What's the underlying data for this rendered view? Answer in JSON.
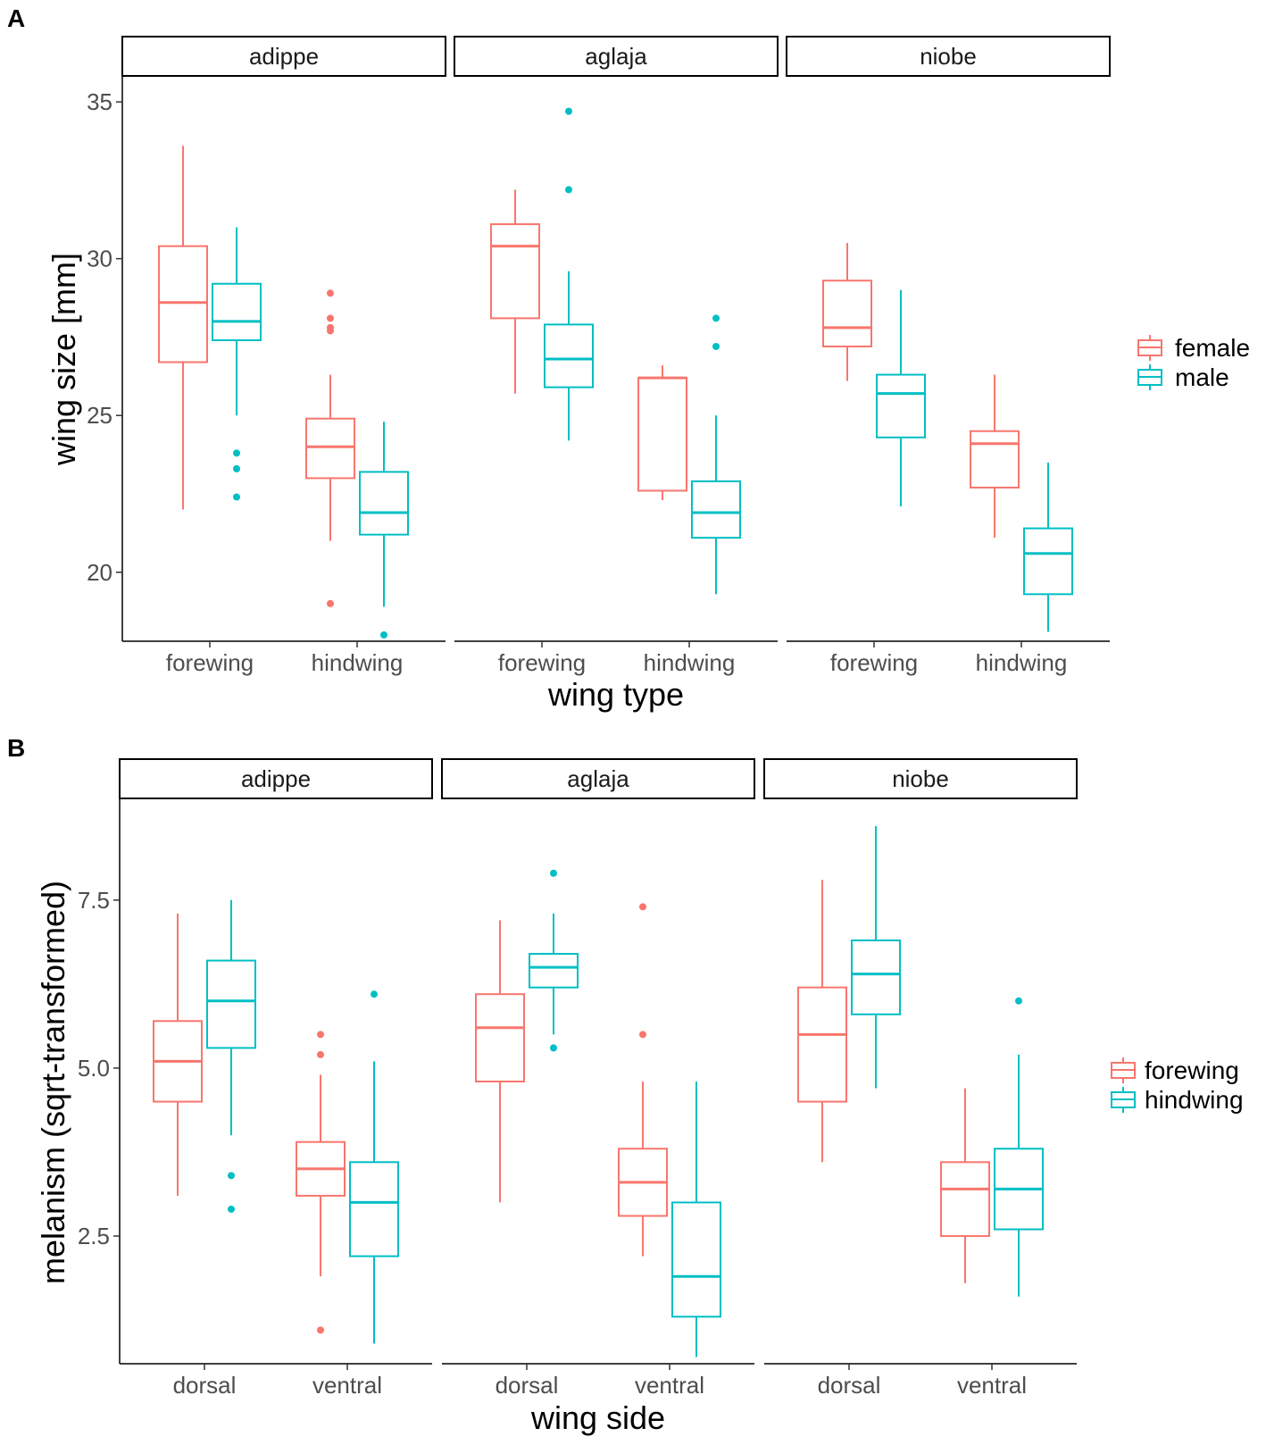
{
  "colors": {
    "c0": "#F8766D",
    "c1": "#00BFC4"
  },
  "chart_data": [
    {
      "type": "boxplot",
      "panel_label": "A",
      "ylabel": "wing size [mm]",
      "xlabel": "wing type",
      "ylim": [
        17.8,
        35.8
      ],
      "yticks": [
        20,
        25,
        30,
        35
      ],
      "ytick_labels": [
        "20",
        "25",
        "30",
        "35"
      ],
      "categories": [
        "forewing",
        "hindwing"
      ],
      "legend": [
        "female",
        "male"
      ],
      "facets": [
        {
          "name": "adippe",
          "boxes": [
            {
              "category": "forewing",
              "series": "female",
              "low": 22.0,
              "q1": 26.7,
              "median": 28.6,
              "q3": 30.4,
              "high": 33.6,
              "outliers": []
            },
            {
              "category": "forewing",
              "series": "male",
              "low": 25.0,
              "q1": 27.4,
              "median": 28.0,
              "q3": 29.2,
              "high": 31.0,
              "outliers": [
                23.8,
                23.3,
                22.4
              ]
            },
            {
              "category": "hindwing",
              "series": "female",
              "low": 21.0,
              "q1": 23.0,
              "median": 24.0,
              "q3": 24.9,
              "high": 26.3,
              "outliers": [
                28.9,
                28.1,
                27.8,
                27.7,
                19.0
              ]
            },
            {
              "category": "hindwing",
              "series": "male",
              "low": 18.9,
              "q1": 21.2,
              "median": 21.9,
              "q3": 23.2,
              "high": 24.8,
              "outliers": [
                18.0
              ]
            }
          ]
        },
        {
          "name": "aglaja",
          "boxes": [
            {
              "category": "forewing",
              "series": "female",
              "low": 25.7,
              "q1": 28.1,
              "median": 30.4,
              "q3": 31.1,
              "high": 32.2,
              "outliers": []
            },
            {
              "category": "forewing",
              "series": "male",
              "low": 24.2,
              "q1": 25.9,
              "median": 26.8,
              "q3": 27.9,
              "high": 29.6,
              "outliers": [
                34.7,
                32.2
              ]
            },
            {
              "category": "hindwing",
              "series": "female",
              "low": 22.3,
              "q1": 22.6,
              "median": 26.2,
              "q3": 26.2,
              "high": 26.6,
              "outliers": []
            },
            {
              "category": "hindwing",
              "series": "male",
              "low": 19.3,
              "q1": 21.1,
              "median": 21.9,
              "q3": 22.9,
              "high": 25.0,
              "outliers": [
                28.1,
                27.2
              ]
            }
          ]
        },
        {
          "name": "niobe",
          "boxes": [
            {
              "category": "forewing",
              "series": "female",
              "low": 26.1,
              "q1": 27.2,
              "median": 27.8,
              "q3": 29.3,
              "high": 30.5,
              "outliers": []
            },
            {
              "category": "forewing",
              "series": "male",
              "low": 22.1,
              "q1": 24.3,
              "median": 25.7,
              "q3": 26.3,
              "high": 29.0,
              "outliers": []
            },
            {
              "category": "hindwing",
              "series": "female",
              "low": 21.1,
              "q1": 22.7,
              "median": 24.1,
              "q3": 24.5,
              "high": 26.3,
              "outliers": []
            },
            {
              "category": "hindwing",
              "series": "male",
              "low": 18.1,
              "q1": 19.3,
              "median": 20.6,
              "q3": 21.4,
              "high": 23.5,
              "outliers": []
            }
          ]
        }
      ]
    },
    {
      "type": "boxplot",
      "panel_label": "B",
      "ylabel": "melanism (sqrt-transformed)",
      "xlabel": "wing side",
      "ylim": [
        0.6,
        9.0
      ],
      "yticks": [
        2.5,
        5.0,
        7.5
      ],
      "ytick_labels": [
        "2.5",
        "5.0",
        "7.5"
      ],
      "categories": [
        "dorsal",
        "ventral"
      ],
      "legend": [
        "forewing",
        "hindwing"
      ],
      "facets": [
        {
          "name": "adippe",
          "boxes": [
            {
              "category": "dorsal",
              "series": "forewing",
              "low": 3.1,
              "q1": 4.5,
              "median": 5.1,
              "q3": 5.7,
              "high": 7.3,
              "outliers": []
            },
            {
              "category": "dorsal",
              "series": "hindwing",
              "low": 4.0,
              "q1": 5.3,
              "median": 6.0,
              "q3": 6.6,
              "high": 7.5,
              "outliers": [
                3.4,
                2.9
              ]
            },
            {
              "category": "ventral",
              "series": "forewing",
              "low": 1.9,
              "q1": 3.1,
              "median": 3.5,
              "q3": 3.9,
              "high": 4.9,
              "outliers": [
                5.5,
                5.2,
                1.1
              ]
            },
            {
              "category": "ventral",
              "series": "hindwing",
              "low": 0.9,
              "q1": 2.2,
              "median": 3.0,
              "q3": 3.6,
              "high": 5.1,
              "outliers": [
                6.1
              ]
            }
          ]
        },
        {
          "name": "aglaja",
          "boxes": [
            {
              "category": "dorsal",
              "series": "forewing",
              "low": 3.0,
              "q1": 4.8,
              "median": 5.6,
              "q3": 6.1,
              "high": 7.2,
              "outliers": []
            },
            {
              "category": "dorsal",
              "series": "hindwing",
              "low": 5.5,
              "q1": 6.2,
              "median": 6.5,
              "q3": 6.7,
              "high": 7.3,
              "outliers": [
                7.9,
                5.3
              ]
            },
            {
              "category": "ventral",
              "series": "forewing",
              "low": 2.2,
              "q1": 2.8,
              "median": 3.3,
              "q3": 3.8,
              "high": 4.8,
              "outliers": [
                7.4,
                5.5
              ]
            },
            {
              "category": "ventral",
              "series": "hindwing",
              "low": 0.7,
              "q1": 1.3,
              "median": 1.9,
              "q3": 3.0,
              "high": 4.8,
              "outliers": []
            }
          ]
        },
        {
          "name": "niobe",
          "boxes": [
            {
              "category": "dorsal",
              "series": "forewing",
              "low": 3.6,
              "q1": 4.5,
              "median": 5.5,
              "q3": 6.2,
              "high": 7.8,
              "outliers": []
            },
            {
              "category": "dorsal",
              "series": "hindwing",
              "low": 4.7,
              "q1": 5.8,
              "median": 6.4,
              "q3": 6.9,
              "high": 8.6,
              "outliers": []
            },
            {
              "category": "ventral",
              "series": "forewing",
              "low": 1.8,
              "q1": 2.5,
              "median": 3.2,
              "q3": 3.6,
              "high": 4.7,
              "outliers": []
            },
            {
              "category": "ventral",
              "series": "hindwing",
              "low": 1.6,
              "q1": 2.6,
              "median": 3.2,
              "q3": 3.8,
              "high": 5.2,
              "outliers": [
                6.0
              ]
            }
          ]
        }
      ]
    }
  ]
}
